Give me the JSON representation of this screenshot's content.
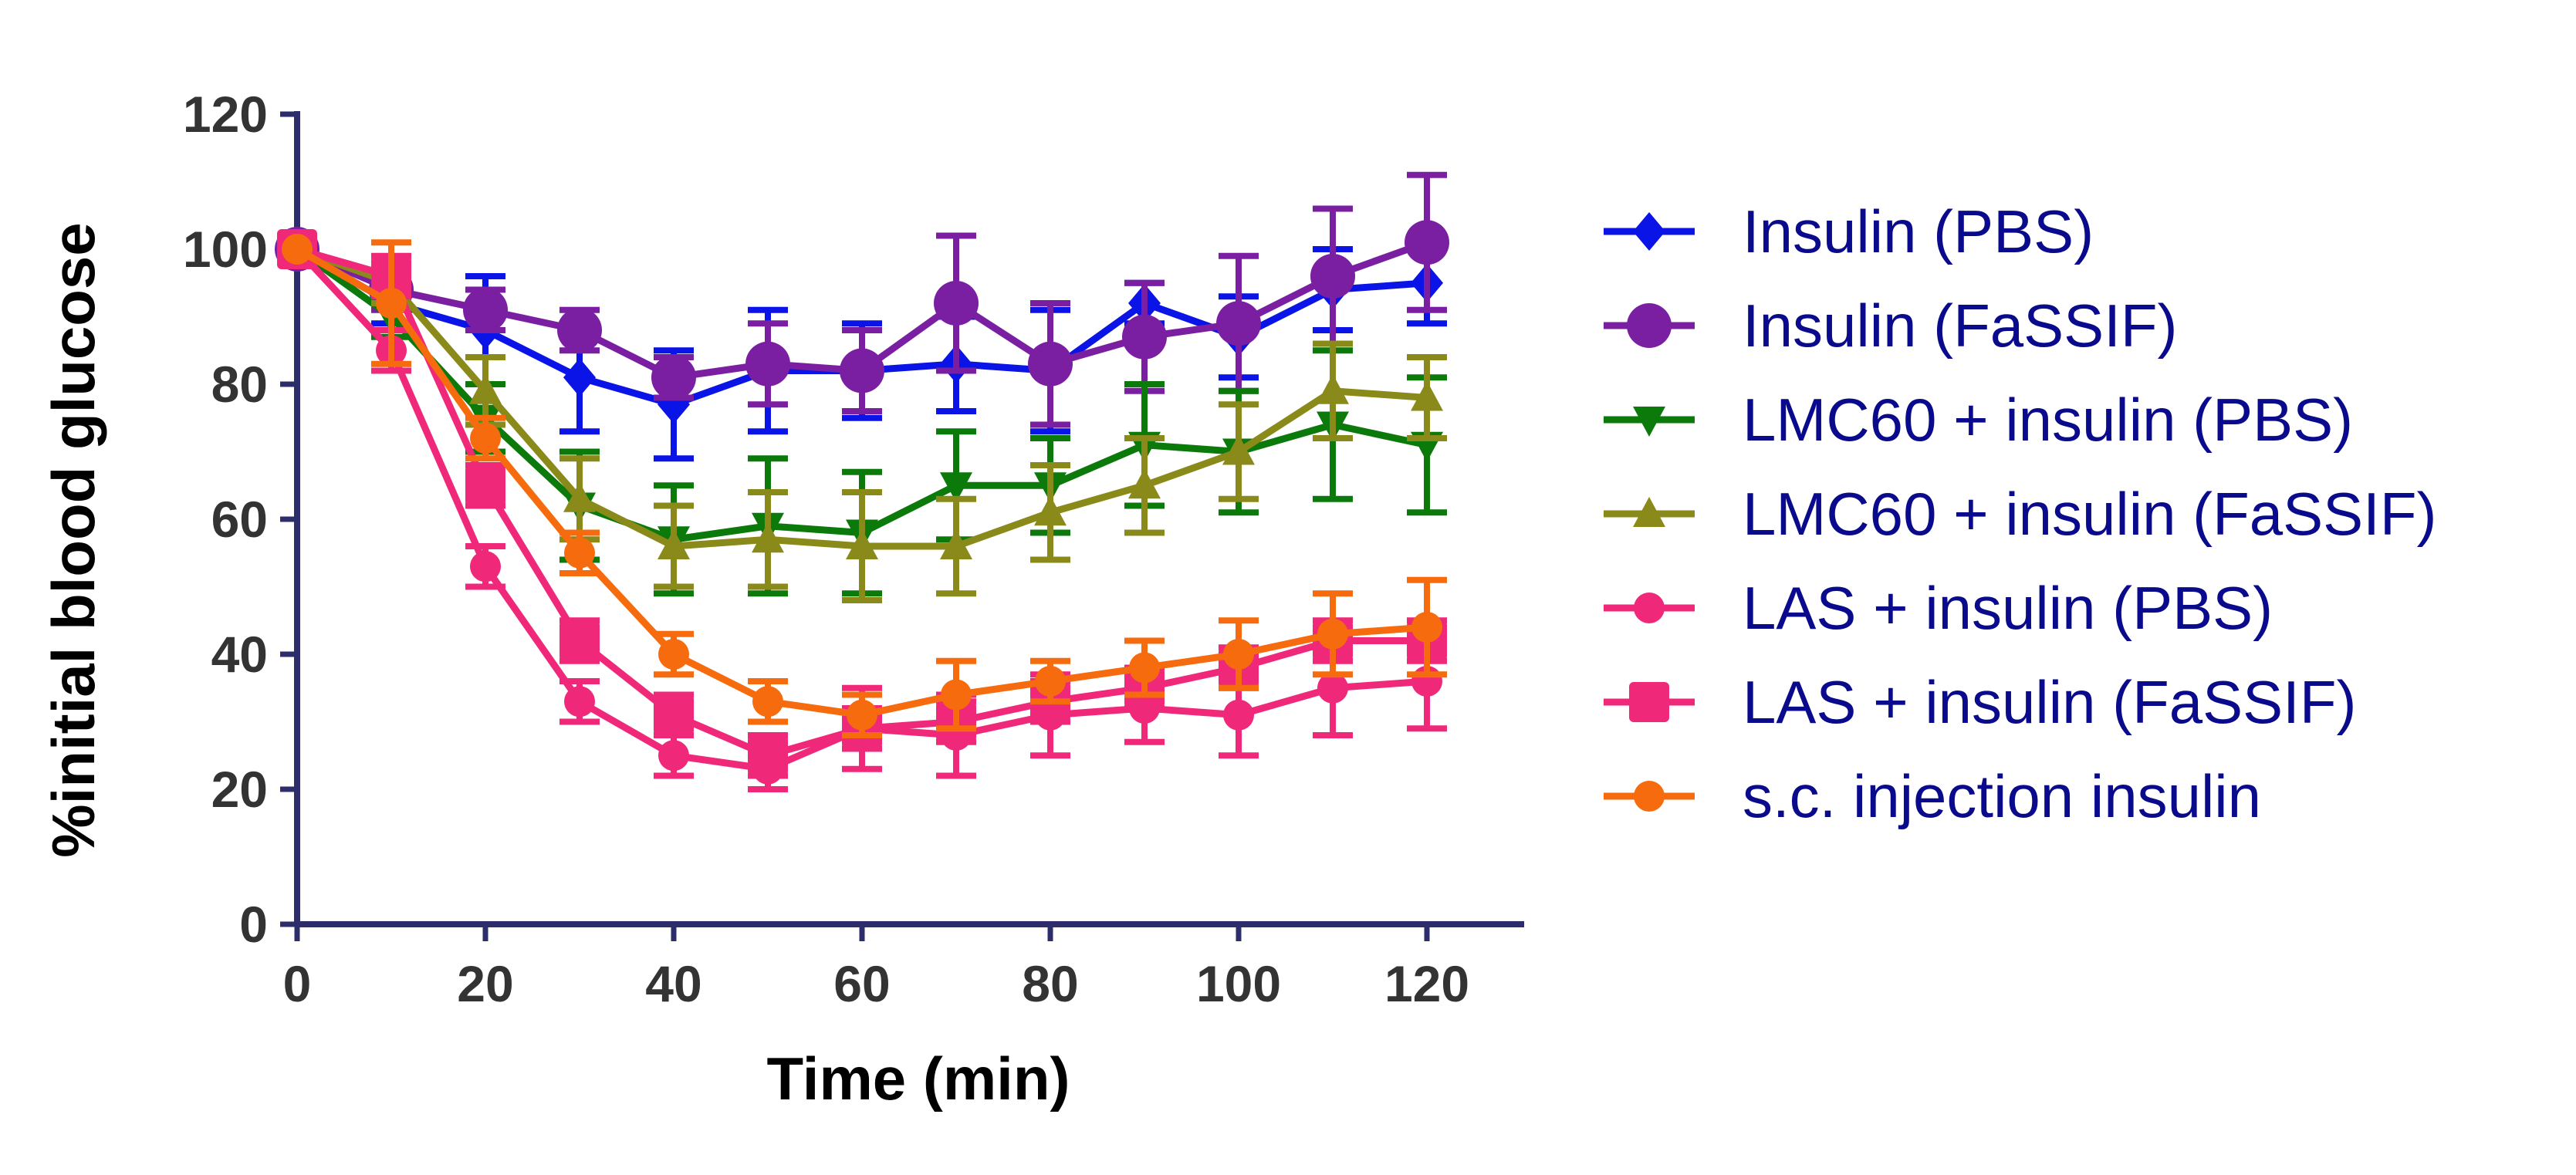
{
  "chart_data": {
    "type": "line",
    "title": "",
    "xlabel": "Time (min)",
    "ylabel": "%initial blood glucose",
    "xlim": [
      0,
      130
    ],
    "ylim": [
      0,
      120
    ],
    "xticks": [
      0,
      20,
      40,
      60,
      80,
      100,
      120
    ],
    "yticks": [
      0,
      20,
      40,
      60,
      80,
      100,
      120
    ],
    "grid": false,
    "legend_position": "right",
    "x": [
      0,
      10,
      20,
      30,
      40,
      50,
      60,
      70,
      80,
      90,
      100,
      110,
      120
    ],
    "series": [
      {
        "name": "Insulin (PBS)",
        "color": "#0a14e6",
        "marker": "diamond",
        "values": [
          100,
          92,
          88,
          81,
          77,
          82,
          82,
          83,
          82,
          92,
          87,
          94,
          95
        ],
        "errors": [
          0,
          3,
          8,
          8,
          8,
          9,
          7,
          7,
          9,
          3,
          6,
          6,
          6
        ]
      },
      {
        "name": "Insulin (FaSSIF)",
        "color": "#7b1fa2",
        "marker": "circle-large",
        "values": [
          100,
          94,
          91,
          88,
          81,
          83,
          82,
          92,
          83,
          87,
          89,
          96,
          101
        ],
        "errors": [
          0,
          3,
          3,
          3,
          3,
          6,
          6,
          10,
          9,
          8,
          10,
          10,
          10
        ]
      },
      {
        "name": "LMC60 + insulin (PBS)",
        "color": "#0b7a0b",
        "marker": "triangle-down",
        "values": [
          100,
          90,
          75,
          62,
          57,
          59,
          58,
          65,
          65,
          71,
          70,
          74,
          71
        ],
        "errors": [
          0,
          3,
          5,
          8,
          8,
          10,
          9,
          8,
          7,
          9,
          9,
          11,
          10
        ]
      },
      {
        "name": "LMC60 + insulin (FaSSIF)",
        "color": "#8a8a1a",
        "marker": "triangle-up",
        "values": [
          100,
          95,
          79,
          63,
          56,
          57,
          56,
          56,
          61,
          65,
          70,
          79,
          78
        ],
        "errors": [
          0,
          3,
          5,
          6,
          6,
          7,
          8,
          7,
          7,
          7,
          7,
          7,
          6
        ]
      },
      {
        "name": "LAS + insulin (PBS)",
        "color": "#f0287a",
        "marker": "circle",
        "values": [
          100,
          85,
          53,
          33,
          25,
          23,
          29,
          28,
          31,
          32,
          31,
          35,
          36
        ],
        "errors": [
          0,
          3,
          3,
          3,
          3,
          3,
          6,
          6,
          6,
          5,
          6,
          7,
          7
        ]
      },
      {
        "name": "LAS + insulin (FaSSIF)",
        "color": "#f0287a",
        "marker": "square",
        "values": [
          100,
          96,
          65,
          42,
          31,
          25,
          29,
          30,
          33,
          35,
          38,
          42,
          42
        ],
        "errors": [
          0,
          3,
          3,
          3,
          3,
          3,
          3,
          3,
          3,
          3,
          3,
          3,
          3
        ]
      },
      {
        "name": "s.c. injection insulin",
        "color": "#f76b0f",
        "marker": "circle",
        "values": [
          100,
          92,
          72,
          55,
          40,
          33,
          31,
          34,
          36,
          38,
          40,
          43,
          44
        ],
        "errors": [
          0,
          9,
          3,
          3,
          3,
          3,
          3,
          5,
          3,
          4,
          5,
          6,
          7
        ]
      }
    ]
  }
}
